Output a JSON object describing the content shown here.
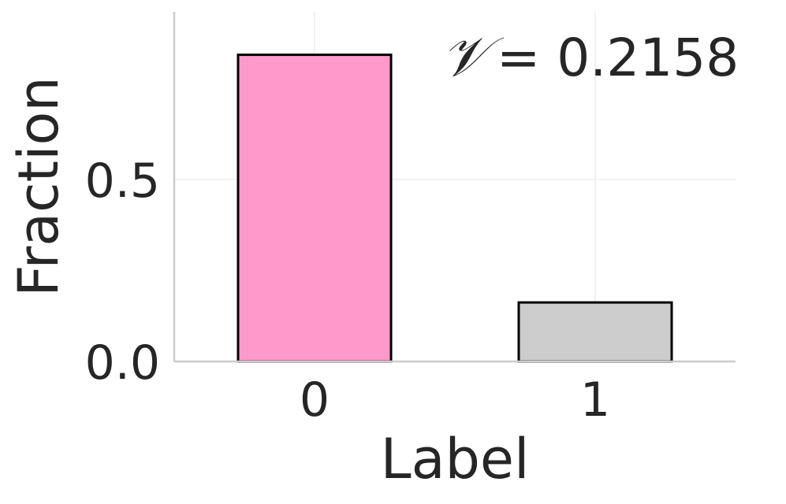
{
  "chart_data": {
    "type": "bar",
    "categories": [
      "0",
      "1"
    ],
    "values": [
      0.842,
      0.162
    ],
    "colors": [
      "#ff99cc",
      "#cccccc"
    ],
    "bar_edge_color": "#000000",
    "xlabel": "Label",
    "ylabel": "Fraction",
    "yticks": [
      "0.0",
      "0.5"
    ],
    "ylim": [
      0,
      0.96
    ],
    "grid": true,
    "annotation": {
      "symbol": "𝒱",
      "text": "= 0.2158"
    }
  }
}
